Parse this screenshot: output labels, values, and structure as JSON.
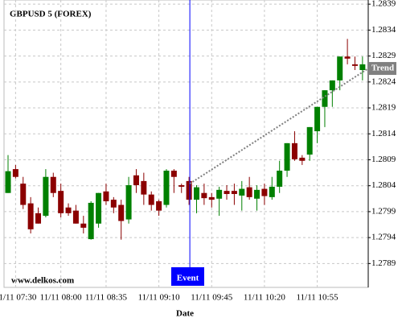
{
  "chart_data": {
    "type": "candlestick",
    "title": "GBPUSD 5 (FOREX)",
    "x_label": "Date",
    "watermark": "www.delkos.com",
    "categories": [
      null,
      "11/11 07:30",
      null,
      null,
      null,
      null,
      null,
      "11/11 08:00",
      null,
      null,
      null,
      null,
      null,
      "11/11 08:35",
      null,
      null,
      null,
      null,
      null,
      null,
      "11/11 09:10",
      null,
      null,
      null,
      null,
      null,
      null,
      "11/11 09:45",
      null,
      null,
      null,
      null,
      null,
      null,
      "11/11 10:20",
      null,
      null,
      null,
      null,
      null,
      null,
      "11/11 10:55",
      null,
      null,
      null,
      null,
      null,
      null
    ],
    "open": [
      1.28026,
      1.28072,
      1.28044,
      1.28006,
      1.27987,
      1.27982,
      1.28057,
      1.2803,
      1.27998,
      1.27992,
      1.27967,
      1.27937,
      1.27967,
      1.28029,
      1.28013,
      1.28003,
      1.27975,
      1.2806,
      1.28049,
      1.28023,
      1.2801,
      1.28003,
      1.28069,
      1.28041,
      1.28049,
      1.28013,
      1.28026,
      1.28018,
      1.28015,
      1.2803,
      1.2803,
      1.28021,
      1.28037,
      1.28015,
      1.28034,
      1.28018,
      1.28038,
      1.28069,
      1.28122,
      1.28094,
      1.281,
      1.28145,
      1.28192,
      1.28224,
      1.28243,
      1.28289,
      1.28274,
      1.28263
    ],
    "high": [
      1.28099,
      1.2808,
      1.28057,
      1.28018,
      1.27998,
      1.28072,
      1.28065,
      1.28044,
      1.28006,
      1.28003,
      1.27982,
      1.2801,
      1.28026,
      1.28044,
      1.28018,
      1.28013,
      1.28057,
      1.28072,
      1.28065,
      1.28029,
      1.28013,
      1.28072,
      1.28072,
      1.28044,
      1.28057,
      1.28041,
      1.28044,
      1.28026,
      1.28038,
      1.28041,
      1.28044,
      1.28049,
      1.28057,
      1.28041,
      1.28044,
      1.28057,
      1.28088,
      1.28122,
      1.28145,
      1.28099,
      1.28153,
      1.28192,
      1.28224,
      1.28243,
      1.28289,
      1.28323,
      1.28289,
      1.28289
    ],
    "low": [
      1.28026,
      1.28054,
      1.27995,
      1.27948,
      1.27967,
      1.27979,
      1.28018,
      1.27979,
      1.27982,
      1.27967,
      1.27948,
      1.27936,
      1.27959,
      1.28003,
      1.27987,
      1.27936,
      1.27967,
      1.28026,
      1.28003,
      1.27992,
      1.27982,
      1.27998,
      1.28026,
      1.28026,
      1.28003,
      1.27987,
      1.28003,
      1.27998,
      1.27982,
      1.28013,
      1.28003,
      1.27992,
      1.28013,
      1.27992,
      1.28003,
      1.28013,
      1.28026,
      1.28057,
      1.28088,
      1.2808,
      1.28088,
      1.28122,
      1.28153,
      1.28192,
      1.28224,
      1.28274,
      1.28263,
      1.28243
    ],
    "close": [
      1.28068,
      1.28057,
      1.28003,
      1.27956,
      1.27967,
      1.28057,
      1.28026,
      1.27987,
      1.27987,
      1.27967,
      1.27959,
      1.28007,
      1.28026,
      1.2801,
      1.27998,
      1.27972,
      1.28041,
      1.28041,
      1.28023,
      1.28003,
      1.27992,
      1.28069,
      1.28057,
      1.28038,
      1.28013,
      1.28037,
      1.28016,
      1.28013,
      1.28032,
      1.28024,
      1.28024,
      1.28034,
      1.28018,
      1.28032,
      1.2802,
      1.28038,
      1.28069,
      1.28122,
      1.28091,
      1.28088,
      1.28153,
      1.28192,
      1.28224,
      1.28243,
      1.28289,
      1.28285,
      1.28271,
      1.28274
    ],
    "up_color": "#008000",
    "down_color": "#8b0000",
    "ylim": [
      1.27844,
      1.28398
    ],
    "yticks": [
      1.2789,
      1.2794,
      1.2799,
      1.2804,
      1.2809,
      1.2814,
      1.2819,
      1.2824,
      1.2829,
      1.2834,
      1.2839
    ],
    "grid": true,
    "event": {
      "label": "Event",
      "color": "#0000ff"
    },
    "trend": {
      "label": "Trend",
      "values": [
        1.28044,
        1.28266
      ],
      "color": "#808080"
    }
  }
}
